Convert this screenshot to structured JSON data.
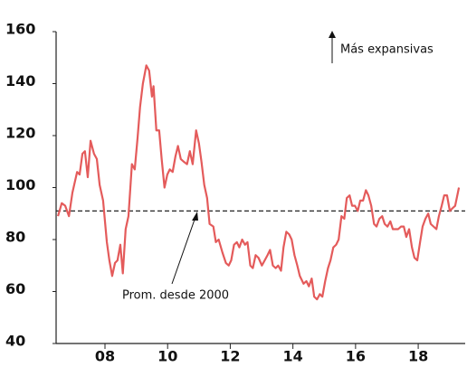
{
  "chart_data": {
    "type": "line",
    "x": [
      2006.5,
      2006.62,
      2006.73,
      2006.85,
      2006.96,
      2007.11,
      2007.19,
      2007.28,
      2007.36,
      2007.45,
      2007.54,
      2007.65,
      2007.74,
      2007.83,
      2007.94,
      2008.06,
      2008.14,
      2008.23,
      2008.32,
      2008.4,
      2008.49,
      2008.57,
      2008.66,
      2008.75,
      2008.86,
      2008.95,
      2009.04,
      2009.12,
      2009.21,
      2009.32,
      2009.41,
      2009.5,
      2009.55,
      2009.64,
      2009.73,
      2009.81,
      2009.9,
      2009.99,
      2010.07,
      2010.16,
      2010.25,
      2010.33,
      2010.42,
      2010.51,
      2010.62,
      2010.71,
      2010.8,
      2010.91,
      2011.0,
      2011.08,
      2011.17,
      2011.26,
      2011.34,
      2011.46,
      2011.54,
      2011.63,
      2011.75,
      2011.86,
      2011.95,
      2012.03,
      2012.12,
      2012.21,
      2012.29,
      2012.38,
      2012.47,
      2012.55,
      2012.64,
      2012.72,
      2012.81,
      2012.9,
      2013.01,
      2013.1,
      2013.19,
      2013.27,
      2013.36,
      2013.45,
      2013.53,
      2013.62,
      2013.7,
      2013.79,
      2013.88,
      2013.96,
      2014.05,
      2014.14,
      2014.22,
      2014.34,
      2014.43,
      2014.51,
      2014.6,
      2014.68,
      2014.77,
      2014.86,
      2014.94,
      2015.03,
      2015.12,
      2015.2,
      2015.29,
      2015.38,
      2015.46,
      2015.55,
      2015.64,
      2015.72,
      2015.81,
      2015.89,
      2015.98,
      2016.07,
      2016.15,
      2016.24,
      2016.33,
      2016.41,
      2016.5,
      2016.59,
      2016.67,
      2016.76,
      2016.85,
      2016.93,
      2017.02,
      2017.11,
      2017.19,
      2017.28,
      2017.36,
      2017.45,
      2017.54,
      2017.62,
      2017.71,
      2017.8,
      2017.88,
      2017.97,
      2018.06,
      2018.14,
      2018.23,
      2018.32,
      2018.4,
      2018.49,
      2018.58,
      2018.66,
      2018.75,
      2018.83,
      2018.92,
      2019.01,
      2019.09,
      2019.18,
      2019.3
    ],
    "series": [
      {
        "color": "#e45b5b",
        "values": [
          89,
          94,
          93,
          89,
          98,
          106,
          105,
          113,
          114,
          104,
          118,
          113,
          111,
          101,
          95,
          79,
          72,
          66,
          71,
          72,
          78,
          67,
          84,
          89,
          109,
          107,
          119,
          131,
          140,
          147,
          145,
          135,
          139,
          122,
          122,
          111,
          100,
          105,
          107,
          106,
          112,
          116,
          111,
          110,
          109,
          114,
          109,
          122,
          117,
          110,
          101,
          96,
          86,
          85,
          79,
          80,
          75,
          71,
          70,
          72,
          78,
          79,
          77,
          80,
          78,
          79,
          70,
          69,
          74,
          73,
          70,
          72,
          74,
          76,
          70,
          69,
          70,
          68,
          77,
          83,
          82,
          80,
          74,
          70,
          66,
          63,
          64,
          62,
          65,
          58,
          57,
          59,
          58,
          64,
          69,
          72,
          77,
          78,
          80,
          89,
          88,
          96,
          97,
          93,
          93,
          91,
          95,
          95,
          99,
          97,
          93,
          86,
          85,
          88,
          89,
          86,
          85,
          87,
          84,
          84,
          84,
          85,
          85,
          81,
          84,
          77,
          73,
          72,
          79,
          85,
          88,
          90,
          86,
          85,
          84,
          89,
          93,
          97,
          97,
          91,
          92,
          93,
          100
        ]
      }
    ],
    "reference_line": 91,
    "annotations": [
      "Prom. desde 2000",
      "Más expansivas"
    ],
    "xlim": [
      2006.44,
      2019.5
    ],
    "xticks": [
      {
        "value": 2008,
        "label": "08"
      },
      {
        "value": 2010,
        "label": "10"
      },
      {
        "value": 2012,
        "label": "12"
      },
      {
        "value": 2014,
        "label": "14"
      },
      {
        "value": 2016,
        "label": "16"
      },
      {
        "value": 2018,
        "label": "18"
      }
    ],
    "ylim": [
      40,
      160
    ],
    "yticks": [
      40,
      60,
      80,
      100,
      120,
      140,
      160
    ]
  }
}
